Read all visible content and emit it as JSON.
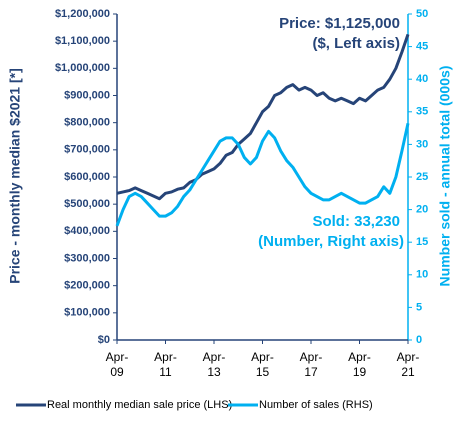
{
  "chart_data": {
    "type": "line",
    "categories": [
      "Apr-09",
      null,
      null,
      null,
      null,
      null,
      null,
      null,
      "Apr-11",
      null,
      null,
      null,
      null,
      null,
      null,
      null,
      "Apr-13",
      null,
      null,
      null,
      null,
      null,
      null,
      null,
      "Apr-15",
      null,
      null,
      null,
      null,
      null,
      null,
      null,
      "Apr-17",
      null,
      null,
      null,
      null,
      null,
      null,
      null,
      "Apr-19",
      null,
      null,
      null,
      null,
      null,
      null,
      null,
      "Apr-21"
    ],
    "series": [
      {
        "name": "Real monthly median sale price (LHS)",
        "color": "#264478",
        "axis": "y",
        "values": [
          540000,
          545000,
          550000,
          560000,
          550000,
          540000,
          530000,
          520000,
          540000,
          545000,
          555000,
          560000,
          580000,
          590000,
          610000,
          620000,
          630000,
          650000,
          680000,
          690000,
          720000,
          740000,
          760000,
          800000,
          840000,
          860000,
          900000,
          910000,
          930000,
          940000,
          920000,
          930000,
          920000,
          900000,
          910000,
          890000,
          880000,
          890000,
          880000,
          870000,
          890000,
          880000,
          900000,
          920000,
          930000,
          960000,
          1000000,
          1060000,
          1125000
        ]
      },
      {
        "name": "Number of sales (RHS)",
        "color": "#00b0f0",
        "axis": "y2",
        "values": [
          17.5,
          20,
          22,
          22.5,
          22,
          21,
          20,
          19,
          19,
          19.5,
          20.5,
          22,
          23,
          24.5,
          26,
          27.5,
          29,
          30.5,
          31,
          31,
          30,
          28,
          27,
          28,
          30.5,
          32,
          31,
          29,
          27.5,
          26.5,
          25,
          23.5,
          22.5,
          22,
          21.5,
          21.5,
          22,
          22.5,
          22,
          21.5,
          21,
          21,
          21.5,
          22,
          23.5,
          22.5,
          25,
          29,
          33.23
        ]
      }
    ],
    "ylabel": "Price - monthly median $2021 [*]",
    "y2label": "Number sold - annual total (000s)",
    "ylim": [
      0,
      1200000
    ],
    "yticks": [
      {
        "value": 0,
        "label": "$0"
      },
      {
        "value": 100000,
        "label": "$100,000"
      },
      {
        "value": 200000,
        "label": "$200,000"
      },
      {
        "value": 300000,
        "label": "$300,000"
      },
      {
        "value": 400000,
        "label": "$400,000"
      },
      {
        "value": 500000,
        "label": "$500,000"
      },
      {
        "value": 600000,
        "label": "$600,000"
      },
      {
        "value": 700000,
        "label": "$700,000"
      },
      {
        "value": 800000,
        "label": "$800,000"
      },
      {
        "value": 900000,
        "label": "$900,000"
      },
      {
        "value": 1000000,
        "label": "$1,000,000"
      },
      {
        "value": 1100000,
        "label": "$1,100,000"
      },
      {
        "value": 1200000,
        "label": "$1,200,000"
      }
    ],
    "y2lim": [
      0,
      50
    ],
    "y2ticks": [
      0,
      5,
      10,
      15,
      20,
      25,
      30,
      35,
      40,
      45,
      50
    ],
    "annotations": [
      {
        "text": "Price: $1,125,000",
        "color": "#264478"
      },
      {
        "text": "($, Left axis)",
        "color": "#264478"
      },
      {
        "text": "Sold: 33,230",
        "color": "#00b0f0"
      },
      {
        "text": "(Number, Right axis)",
        "color": "#00b0f0"
      }
    ],
    "grid": false,
    "legend": "bottom"
  }
}
